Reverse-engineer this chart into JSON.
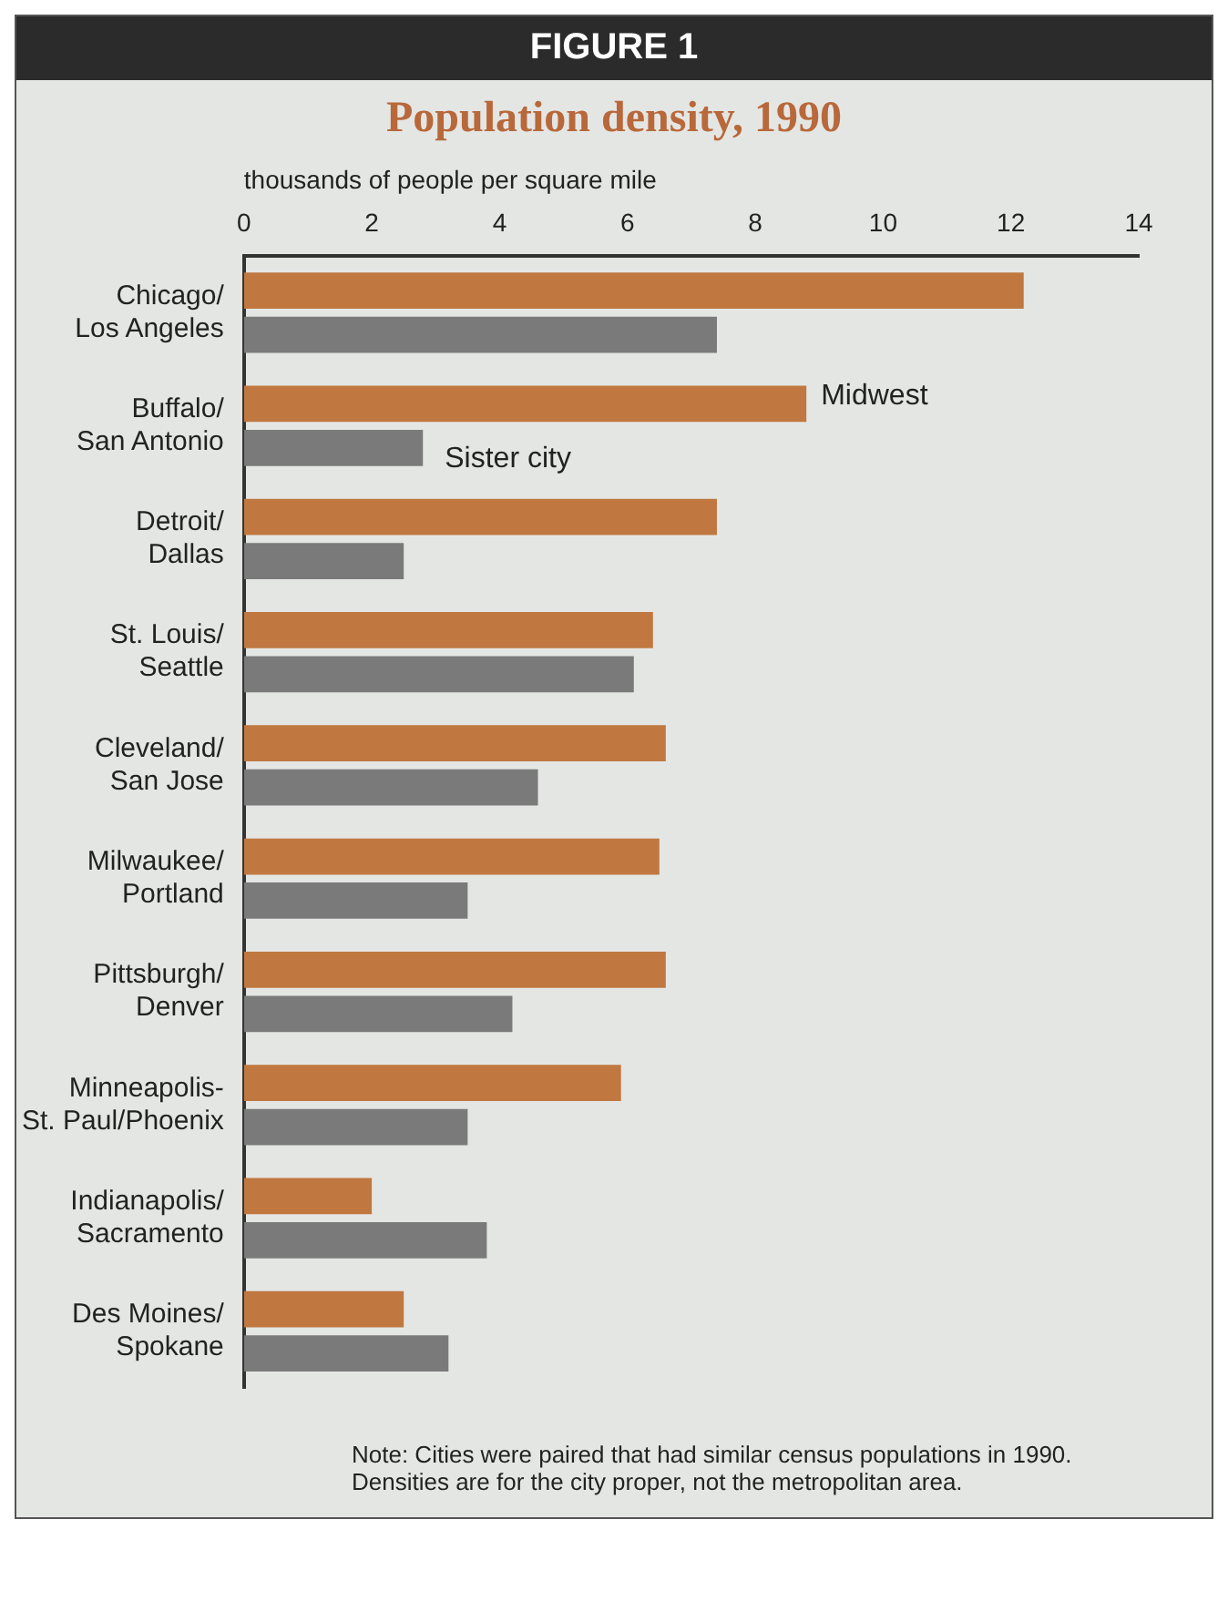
{
  "chart_data": {
    "type": "bar",
    "orientation": "horizontal",
    "title": "FIGURE 1",
    "subtitle": "Population density, 1990",
    "xlabel": "thousands of people per square mile",
    "categories": [
      "Chicago/\nLos Angeles",
      "Buffalo/\nSan Antonio",
      "Detroit/\nDallas",
      "St. Louis/\nSeattle",
      "Cleveland/\nSan Jose",
      "Milwaukee/\nPortland",
      "Pittsburgh/\nDenver",
      "Minneapolis-\nSt. Paul/Phoenix",
      "Indianapolis/\nSacramento",
      "Des Moines/\nSpokane"
    ],
    "series": [
      {
        "name": "Midwest",
        "color": "#c07840",
        "values": [
          12.2,
          8.8,
          7.4,
          6.4,
          6.6,
          6.5,
          6.6,
          5.9,
          2.0,
          2.5
        ]
      },
      {
        "name": "Sister city",
        "color": "#7a7a7a",
        "values": [
          7.4,
          2.8,
          2.5,
          6.1,
          4.6,
          3.5,
          4.2,
          3.5,
          3.8,
          3.2
        ]
      }
    ],
    "xlim": [
      0,
      14
    ],
    "xticks": [
      0,
      2,
      4,
      6,
      8,
      10,
      12,
      14
    ],
    "grid": false,
    "legend": false,
    "annotations": [
      "Note: Cities were paired that had similar census populations in 1990.  Densities are for the city proper, not the metropolitan area."
    ]
  }
}
